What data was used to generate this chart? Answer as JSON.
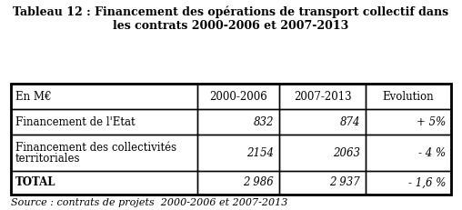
{
  "title": "Tableau 12 : Financement des opérations de transport collectif dans\nles contrats 2000-2006 et 2007-2013",
  "source": "Source : contrats de projets  2000-2006 et 2007-2013",
  "col_headers": [
    "En M€",
    "2000-2006",
    "2007-2013",
    "Evolution"
  ],
  "rows": [
    [
      "Financement de l'Etat",
      "832",
      "874",
      "+ 5%"
    ],
    [
      "Financement des collectivités\nterritoriales",
      "2154",
      "2063",
      "- 4 %"
    ],
    [
      "TOTAL",
      "2 986",
      "2 937",
      "- 1,6 %"
    ]
  ],
  "bg_color": "#ffffff",
  "title_fontsize": 9.0,
  "cell_fontsize": 8.5,
  "source_fontsize": 8.0
}
